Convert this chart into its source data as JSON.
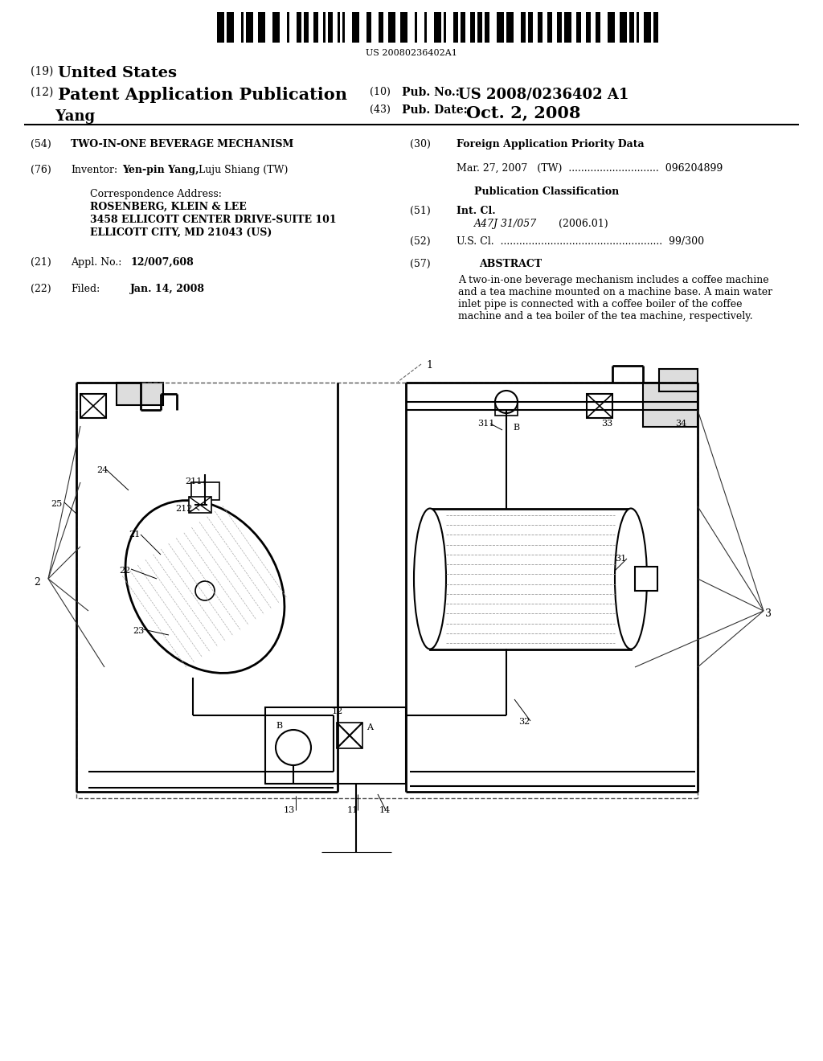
{
  "bg_color": "#ffffff",
  "barcode_text": "US 20080236402A1",
  "title_19_prefix": "(19) ",
  "title_19_main": "United States",
  "title_12_prefix": "(12) ",
  "title_12_main": "Patent Application Publication",
  "pub_no_label": "(10) Pub. No.:",
  "pub_no_value": "US 2008/0236402 A1",
  "pub_date_label": "(43) Pub. Date:",
  "pub_date_value": "Oct. 2, 2008",
  "inventor_name": "Yang",
  "section54_title": "TWO-IN-ONE BEVERAGE MECHANISM",
  "section76_value_bold": "Yen-pin Yang,",
  "section76_value_normal": " Luju Shiang (TW)",
  "corr_line1": "ROSENBERG, KLEIN & LEE",
  "corr_line2": "3458 ELLICOTT CENTER DRIVE-SUITE 101",
  "corr_line3": "ELLICOTT CITY, MD 21043 (US)",
  "appl_value": "12/007,608",
  "filed_value": "Jan. 14, 2008",
  "section30_title": "Foreign Application Priority Data",
  "priority_line": "Mar. 27, 2007   (TW)  .............................  096204899",
  "pub_class_title": "Publication Classification",
  "int_cl_value": "A47J 31/057",
  "int_cl_year": "(2006.01)",
  "us_cl_dots": "U.S. Cl.  ....................................................  99/300",
  "abstract_title": "ABSTRACT",
  "abstract_text": "A two-in-one beverage mechanism includes a coffee machine and a tea machine mounted on a machine base. A main water inlet pipe is connected with a coffee boiler of the coffee machine and a tea boiler of the tea machine, respectively.",
  "line_color": "#000000",
  "text_color": "#000000"
}
